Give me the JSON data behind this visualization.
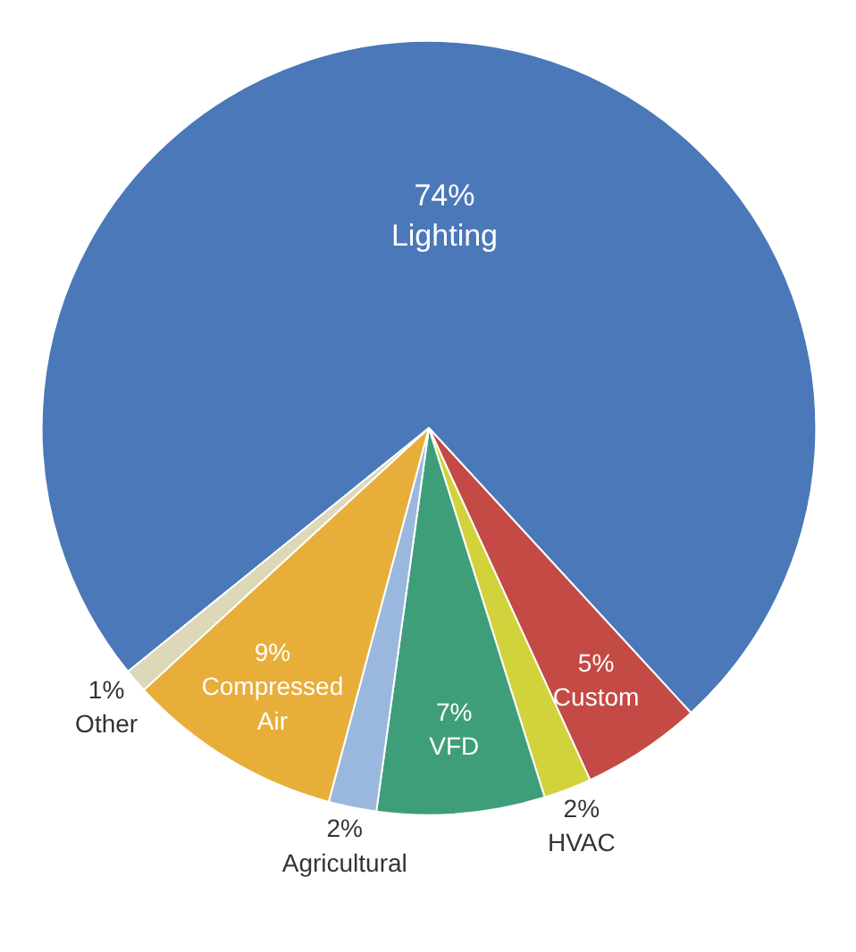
{
  "chart_data": {
    "type": "pie",
    "categories": [
      "Lighting",
      "Custom",
      "HVAC",
      "VFD",
      "Agricultural",
      "Compressed Air",
      "Other"
    ],
    "values": [
      74,
      5,
      2,
      7,
      2,
      9,
      1
    ],
    "value_labels": [
      "74%",
      "5%",
      "2%",
      "7%",
      "2%",
      "9%",
      "1%"
    ],
    "colors": [
      "#4a78b8",
      "#c44a45",
      "#d2d23c",
      "#3f9e7a",
      "#9ab8de",
      "#e8ae3a",
      "#dcd8b8"
    ]
  }
}
